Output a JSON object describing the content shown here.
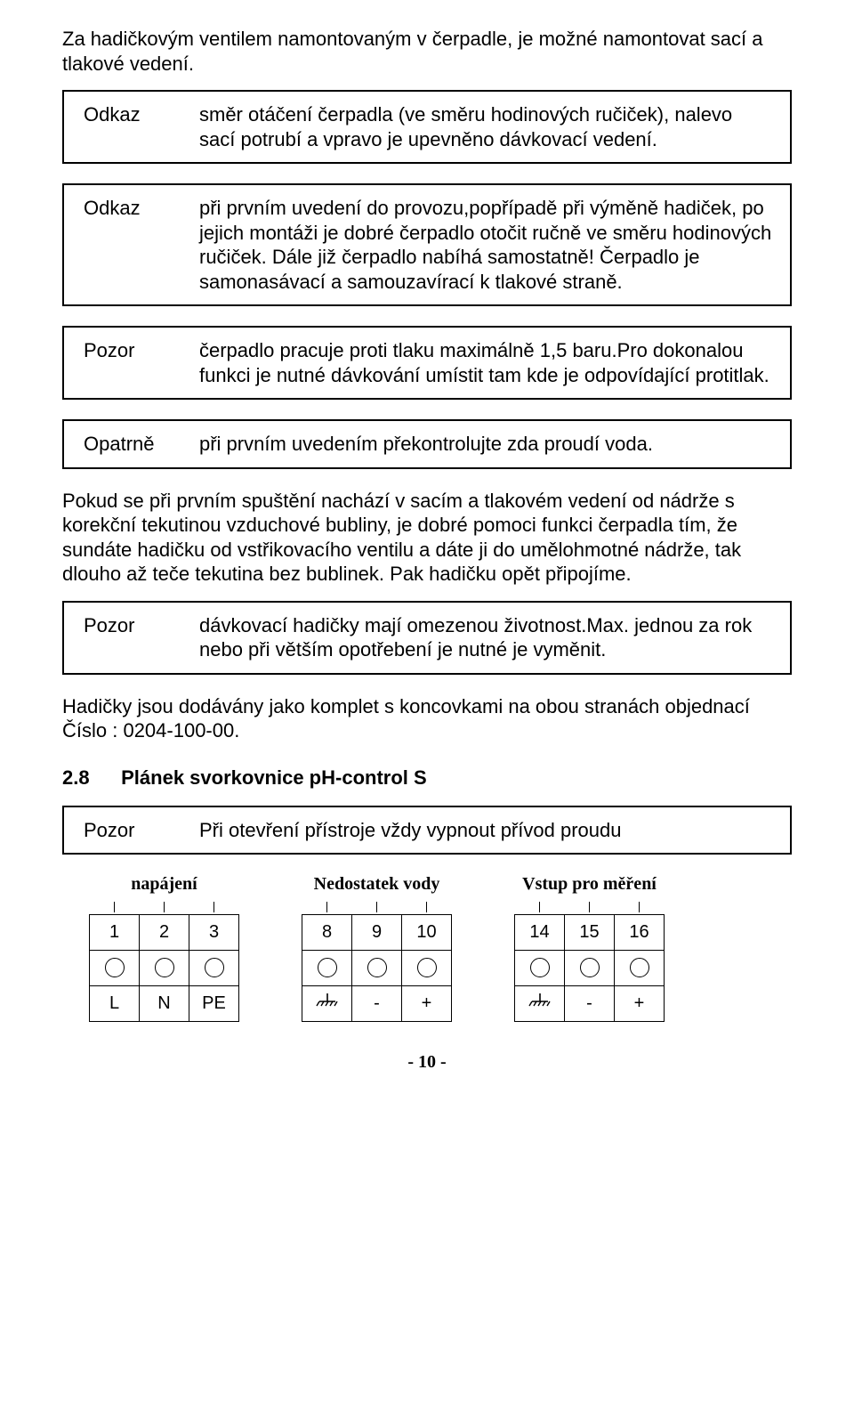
{
  "intro": "Za hadičkovým ventilem namontovaným v čerpadle, je možné namontovat sací a tlakové vedení.",
  "boxes": [
    {
      "label": "Odkaz",
      "text": "směr otáčení čerpadla (ve směru hodinových ručiček), nalevo sací potrubí a vpravo je upevněno dávkovací vedení."
    },
    {
      "label": "Odkaz",
      "text": "při prvním uvedení do provozu,popřípadě při výměně hadiček, po jejich montáži je dobré čerpadlo otočit ručně ve směru hodinových ručiček. Dále již čerpadlo nabíhá samostatně! Čerpadlo je samonasávací a samouzavírací k tlakové straně."
    },
    {
      "label": "Pozor",
      "text": "čerpadlo pracuje proti tlaku maximálně 1,5 baru.Pro dokonalou funkci je nutné dávkování umístit tam kde je odpovídající protitlak."
    },
    {
      "label": "Opatrně",
      "text": "při prvním uvedením překontrolujte zda proudí voda."
    }
  ],
  "mid_para": "Pokud se při prvním spuštění nachází v sacím a tlakovém vedení od nádrže s korekční tekutinou vzduchové bubliny, je dobré pomoci funkci čerpadla tím, že sundáte hadičku od vstřikovacího ventilu a dáte ji do umělohmotné nádrže, tak dlouho až teče tekutina bez bublinek. Pak hadičku opět připojíme.",
  "box5": {
    "label": "Pozor",
    "text": "dávkovací hadičky mají omezenou životnost.Max. jednou za rok nebo při větším opotřebení je nutné je vyměnit."
  },
  "order_para": "Hadičky jsou dodávány jako komplet s koncovkami na obou stranách objednací Číslo : 0204-100-00.",
  "section": {
    "num": "2.8",
    "title": "Plánek svorkovnice pH-control S"
  },
  "box6": {
    "label": "Pozor",
    "text": "Při otevření přístroje vždy vypnout přívod proudu"
  },
  "terminals": [
    {
      "title": "napájení",
      "nums": [
        "1",
        "2",
        "3"
      ],
      "labels": [
        "L",
        "N",
        "PE"
      ]
    },
    {
      "title": "Nedostatek vody",
      "nums": [
        "8",
        "9",
        "10"
      ],
      "labels": [
        "gnd",
        "-",
        "+"
      ]
    },
    {
      "title": "Vstup pro měření",
      "nums": [
        "14",
        "15",
        "16"
      ],
      "labels": [
        "gnd",
        "-",
        "+"
      ]
    }
  ],
  "page_number": "- 10 -"
}
